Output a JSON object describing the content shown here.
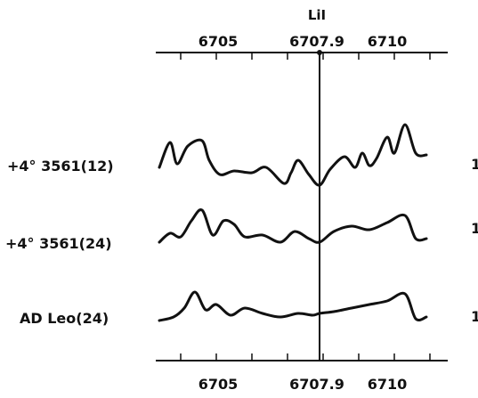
{
  "chart_data": {
    "type": "line",
    "title": "",
    "xlabel": "",
    "ylabel": "",
    "xlim": [
      6703.3,
      6711.5
    ],
    "x_ticks_labeled": [
      "6705",
      "6707.9",
      "6710"
    ],
    "x_ticks_labeled_values": [
      6705,
      6707.9,
      6710
    ],
    "x_ticks_minor": [
      6704,
      6705,
      6706,
      6707,
      6708,
      6709,
      6710,
      6711
    ],
    "marker": {
      "label": "LiI",
      "x": 6707.9
    },
    "right_margin_mark": "1",
    "series": [
      {
        "name": "+4° 3561(12)",
        "x": [
          6703.4,
          6703.7,
          6703.9,
          6704.2,
          6704.6,
          6704.8,
          6705.1,
          6705.5,
          6706.0,
          6706.4,
          6706.9,
          6707.1,
          6707.3,
          6707.6,
          6707.9,
          6708.2,
          6708.6,
          6708.9,
          6709.1,
          6709.3,
          6709.5,
          6709.8,
          6710.0,
          6710.3,
          6710.6,
          6710.9
        ],
        "values": [
          0.2,
          0.9,
          0.3,
          0.8,
          0.95,
          0.4,
          0.0,
          0.1,
          0.05,
          0.2,
          -0.25,
          0.05,
          0.4,
          0.0,
          -0.3,
          0.15,
          0.5,
          0.2,
          0.6,
          0.25,
          0.45,
          1.05,
          0.6,
          1.4,
          0.6,
          0.55
        ]
      },
      {
        "name": "+4° 3561(24)",
        "x": [
          6703.4,
          6703.7,
          6704.0,
          6704.3,
          6704.6,
          6704.9,
          6705.2,
          6705.5,
          6705.8,
          6706.3,
          6706.8,
          6707.2,
          6707.6,
          6707.9,
          6708.3,
          6708.8,
          6709.3,
          6709.8,
          6710.3,
          6710.6,
          6710.9
        ],
        "values": [
          0.0,
          0.25,
          0.15,
          0.6,
          0.9,
          0.2,
          0.6,
          0.5,
          0.15,
          0.2,
          0.0,
          0.3,
          0.1,
          0.0,
          0.3,
          0.45,
          0.35,
          0.55,
          0.75,
          0.1,
          0.1
        ]
      },
      {
        "name": "AD Leo(24)",
        "x": [
          6703.4,
          6703.8,
          6704.1,
          6704.4,
          6704.7,
          6705.0,
          6705.4,
          6705.8,
          6706.3,
          6706.8,
          6707.3,
          6707.7,
          6707.9,
          6708.3,
          6708.8,
          6709.3,
          6709.8,
          6710.3,
          6710.6,
          6710.9
        ],
        "values": [
          0.0,
          0.1,
          0.35,
          0.8,
          0.3,
          0.45,
          0.15,
          0.35,
          0.2,
          0.1,
          0.2,
          0.15,
          0.2,
          0.25,
          0.35,
          0.45,
          0.55,
          0.75,
          0.05,
          0.1
        ]
      }
    ]
  }
}
